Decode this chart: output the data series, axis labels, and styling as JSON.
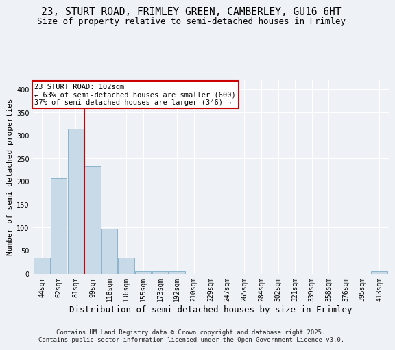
{
  "title1": "23, STURT ROAD, FRIMLEY GREEN, CAMBERLEY, GU16 6HT",
  "title2": "Size of property relative to semi-detached houses in Frimley",
  "xlabel": "Distribution of semi-detached houses by size in Frimley",
  "ylabel": "Number of semi-detached properties",
  "bin_labels": [
    "44sqm",
    "62sqm",
    "81sqm",
    "99sqm",
    "118sqm",
    "136sqm",
    "155sqm",
    "173sqm",
    "192sqm",
    "210sqm",
    "229sqm",
    "247sqm",
    "265sqm",
    "284sqm",
    "302sqm",
    "321sqm",
    "339sqm",
    "358sqm",
    "376sqm",
    "395sqm",
    "413sqm"
  ],
  "bar_values": [
    35,
    207,
    315,
    232,
    98,
    35,
    5,
    5,
    5,
    0,
    0,
    0,
    0,
    0,
    0,
    0,
    0,
    0,
    0,
    0,
    5
  ],
  "bar_color": "#c8d9e8",
  "bar_edgecolor": "#7faec8",
  "vline_pos": 2.5,
  "annotation_title": "23 STURT ROAD: 102sqm",
  "annotation_line1": "← 63% of semi-detached houses are smaller (600)",
  "annotation_line2": "37% of semi-detached houses are larger (346) →",
  "annotation_box_facecolor": "#ffffff",
  "annotation_box_edgecolor": "#cc0000",
  "vline_color": "#cc0000",
  "ylim": [
    0,
    420
  ],
  "yticks": [
    0,
    50,
    100,
    150,
    200,
    250,
    300,
    350,
    400
  ],
  "footer1": "Contains HM Land Registry data © Crown copyright and database right 2025.",
  "footer2": "Contains public sector information licensed under the Open Government Licence v3.0.",
  "background_color": "#eef2f6",
  "grid_color": "#ffffff",
  "title1_fontsize": 10.5,
  "title2_fontsize": 9,
  "xlabel_fontsize": 9,
  "ylabel_fontsize": 8,
  "tick_fontsize": 7,
  "ann_fontsize": 7.5,
  "footer_fontsize": 6.5
}
